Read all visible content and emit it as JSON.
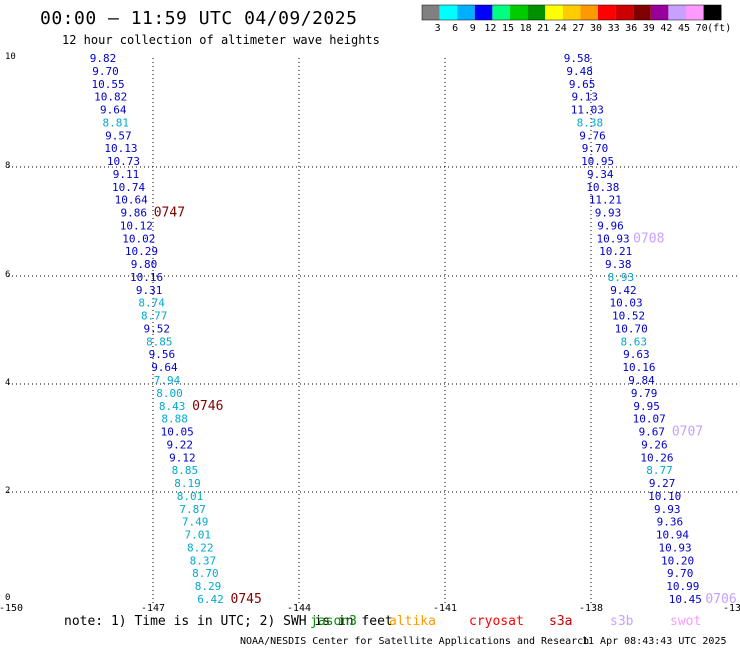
{
  "title": "00:00 – 11:59 UTC 04/09/2025",
  "subtitle": "12 hour collection of altimeter wave heights",
  "legend": {
    "colors": [
      "#808080",
      "#00ffff",
      "#00b0ff",
      "#0000ff",
      "#00ff80",
      "#00cc00",
      "#009000",
      "#ffff00",
      "#ffcc00",
      "#ff9900",
      "#ff0000",
      "#cc0000",
      "#800000",
      "#990099",
      "#c8a0ff",
      "#ff99ff",
      "#000000"
    ],
    "labels": [
      "3",
      "6",
      "9",
      "12",
      "15",
      "18",
      "21",
      "24",
      "27",
      "30",
      "33",
      "36",
      "39",
      "42",
      "45",
      "70",
      "(ft)"
    ]
  },
  "axes": {
    "x_ticks": [
      "-150",
      "-147",
      "-144",
      "-141",
      "-138",
      "-13"
    ],
    "y_ticks": [
      "10",
      "8",
      "6",
      "4",
      "2",
      "0"
    ]
  },
  "track_left": {
    "color_dark": "#0000cc",
    "color_light": "#00aacc",
    "readings": [
      {
        "v": "9.82",
        "c": "d"
      },
      {
        "v": "9.70",
        "c": "d"
      },
      {
        "v": "10.55",
        "c": "d"
      },
      {
        "v": "10.82",
        "c": "d"
      },
      {
        "v": "9.64",
        "c": "d"
      },
      {
        "v": "8.81",
        "c": "l"
      },
      {
        "v": "9.57",
        "c": "d"
      },
      {
        "v": "10.13",
        "c": "d"
      },
      {
        "v": "10.73",
        "c": "d"
      },
      {
        "v": "9.11",
        "c": "d"
      },
      {
        "v": "10.74",
        "c": "d"
      },
      {
        "v": "10.64",
        "c": "d"
      },
      {
        "v": "9.86",
        "c": "d"
      },
      {
        "v": "10.12",
        "c": "d"
      },
      {
        "v": "10.02",
        "c": "d"
      },
      {
        "v": "10.29",
        "c": "d"
      },
      {
        "v": "9.80",
        "c": "d"
      },
      {
        "v": "10.16",
        "c": "d"
      },
      {
        "v": "9.31",
        "c": "d"
      },
      {
        "v": "8.74",
        "c": "l"
      },
      {
        "v": "8.77",
        "c": "l"
      },
      {
        "v": "9.52",
        "c": "d"
      },
      {
        "v": "8.85",
        "c": "l"
      },
      {
        "v": "9.56",
        "c": "d"
      },
      {
        "v": "9.64",
        "c": "d"
      },
      {
        "v": "7.94",
        "c": "l"
      },
      {
        "v": "8.00",
        "c": "l"
      },
      {
        "v": "8.43",
        "c": "l"
      },
      {
        "v": "8.88",
        "c": "l"
      },
      {
        "v": "10.05",
        "c": "d"
      },
      {
        "v": "9.22",
        "c": "d"
      },
      {
        "v": "9.12",
        "c": "d"
      },
      {
        "v": "8.85",
        "c": "l"
      },
      {
        "v": "8.19",
        "c": "l"
      },
      {
        "v": "8.01",
        "c": "l"
      },
      {
        "v": "7.87",
        "c": "l"
      },
      {
        "v": "7.49",
        "c": "l"
      },
      {
        "v": "7.01",
        "c": "l"
      },
      {
        "v": "8.22",
        "c": "l"
      },
      {
        "v": "8.37",
        "c": "l"
      },
      {
        "v": "8.70",
        "c": "l"
      },
      {
        "v": "8.29",
        "c": "l"
      },
      {
        "v": "6.42",
        "c": "l"
      }
    ],
    "time_labels": [
      {
        "text": "0747",
        "row": 12
      },
      {
        "text": "0746",
        "row": 27
      },
      {
        "text": "0745",
        "row": 42
      }
    ],
    "time_color": "#800000"
  },
  "track_right": {
    "color_dark": "#0000cc",
    "color_light": "#00aacc",
    "readings": [
      {
        "v": "9.58",
        "c": "d"
      },
      {
        "v": "9.48",
        "c": "d"
      },
      {
        "v": "9.65",
        "c": "d"
      },
      {
        "v": "9.13",
        "c": "d"
      },
      {
        "v": "11.03",
        "c": "d"
      },
      {
        "v": "8.38",
        "c": "l"
      },
      {
        "v": "9.76",
        "c": "d"
      },
      {
        "v": "9.70",
        "c": "d"
      },
      {
        "v": "10.95",
        "c": "d"
      },
      {
        "v": "9.34",
        "c": "d"
      },
      {
        "v": "10.38",
        "c": "d"
      },
      {
        "v": "11.21",
        "c": "d"
      },
      {
        "v": "9.93",
        "c": "d"
      },
      {
        "v": "9.96",
        "c": "d"
      },
      {
        "v": "10.93",
        "c": "d"
      },
      {
        "v": "10.21",
        "c": "d"
      },
      {
        "v": "9.38",
        "c": "d"
      },
      {
        "v": "8.93",
        "c": "l"
      },
      {
        "v": "9.42",
        "c": "d"
      },
      {
        "v": "10.03",
        "c": "d"
      },
      {
        "v": "10.52",
        "c": "d"
      },
      {
        "v": "10.70",
        "c": "d"
      },
      {
        "v": "8.63",
        "c": "l"
      },
      {
        "v": "9.63",
        "c": "d"
      },
      {
        "v": "10.16",
        "c": "d"
      },
      {
        "v": "9.84",
        "c": "d"
      },
      {
        "v": "9.79",
        "c": "d"
      },
      {
        "v": "9.95",
        "c": "d"
      },
      {
        "v": "10.07",
        "c": "d"
      },
      {
        "v": "9.67",
        "c": "d"
      },
      {
        "v": "9.26",
        "c": "d"
      },
      {
        "v": "10.26",
        "c": "d"
      },
      {
        "v": "8.77",
        "c": "l"
      },
      {
        "v": "9.27",
        "c": "d"
      },
      {
        "v": "10.10",
        "c": "d"
      },
      {
        "v": "9.93",
        "c": "d"
      },
      {
        "v": "9.36",
        "c": "d"
      },
      {
        "v": "10.94",
        "c": "d"
      },
      {
        "v": "10.93",
        "c": "d"
      },
      {
        "v": "10.20",
        "c": "d"
      },
      {
        "v": "9.70",
        "c": "d"
      },
      {
        "v": "10.99",
        "c": "d"
      },
      {
        "v": "10.45",
        "c": "d"
      }
    ],
    "time_labels": [
      {
        "text": "0708",
        "row": 14
      },
      {
        "text": "0707",
        "row": 29
      },
      {
        "text": "0706",
        "row": 42
      }
    ],
    "time_color": "#c8a0ff"
  },
  "note": {
    "text_start": "note: 1) Time is in UTC; 2) SWH is in feet",
    "overlay_label": "jason3",
    "overlay_color": "#009000"
  },
  "satellites": [
    {
      "name": "altika",
      "color": "#ff9900"
    },
    {
      "name": "cryosat",
      "color": "#ff0000"
    },
    {
      "name": "s3a",
      "color": "#cc0000"
    },
    {
      "name": "s3b",
      "color": "#c8a0ff"
    },
    {
      "name": "swot",
      "color": "#ff99ff"
    }
  ],
  "footer": {
    "credit": "NOAA/NESDIS Center for Satellite Applications and Research",
    "timestamp": "11 Apr 08:43:43 UTC 2025"
  }
}
